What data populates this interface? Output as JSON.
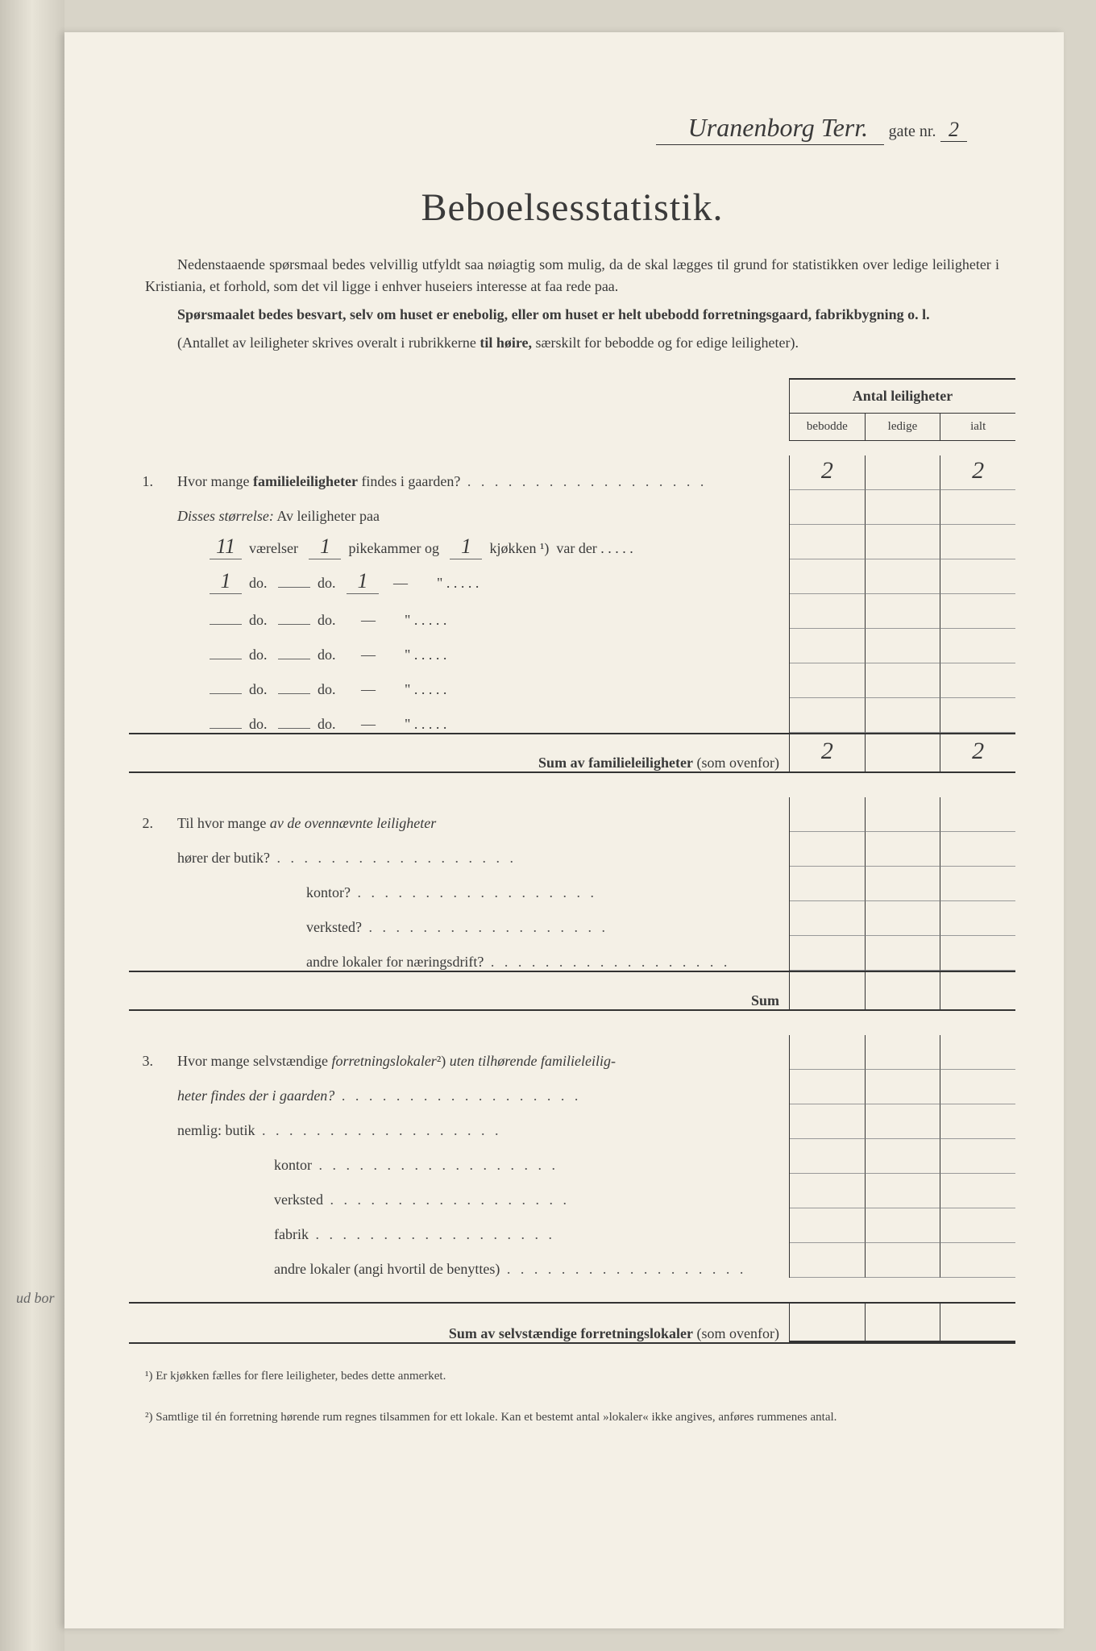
{
  "header": {
    "street_handwritten": "Uranenborg Terr.",
    "gate_label": "gate nr.",
    "gate_nr": "2"
  },
  "title": "Beboelsesstatistik.",
  "intro": {
    "p1": "Nedenstaaende spørsmaal bedes velvillig utfyldt saa nøiagtig som mulig, da de skal lægges til grund for statistikken over ledige leiligheter i Kristiania, et forhold, som det vil ligge i enhver huseiers interesse at faa rede paa.",
    "p2": "Spørsmaalet bedes besvart, selv om huset er enebolig, eller om huset er helt ubebodd forretningsgaard, fabrikbygning o. l.",
    "p3_pre": "(Antallet av leiligheter skrives overalt i rubrikkerne ",
    "p3_bold": "til høire,",
    "p3_post": " særskilt for bebodde og for edige leiligheter)."
  },
  "table_header": {
    "title": "Antal leiligheter",
    "col1": "bebodde",
    "col2": "ledige",
    "col3": "ialt"
  },
  "q1": {
    "num": "1.",
    "text": "Hvor mange ",
    "bold": "familieleiligheter",
    "text2": " findes i gaarden?",
    "bebodde": "2",
    "ledige": "",
    "ialt": "2",
    "disses": "Disses størrelse:",
    "av_leil": " Av leiligheter paa",
    "rows": [
      {
        "vaer": "11",
        "pike": "1",
        "kjok": "1",
        "dash": false
      },
      {
        "vaer": "1",
        "pike": "",
        "kjok": "1",
        "dash": true
      },
      {
        "vaer": "",
        "pike": "",
        "kjok": "",
        "dash": true
      },
      {
        "vaer": "",
        "pike": "",
        "kjok": "",
        "dash": true
      },
      {
        "vaer": "",
        "pike": "",
        "kjok": "",
        "dash": true
      },
      {
        "vaer": "",
        "pike": "",
        "kjok": "",
        "dash": true
      }
    ],
    "labels": {
      "vaer": "værelser",
      "do": "do.",
      "pike": "pikekammer og",
      "kjok": "kjøkken",
      "sup": "¹)",
      "var_der": "var der",
      "dash": "—",
      "quote": "\""
    },
    "sum_label": "Sum av familieleiligheter",
    "sum_note": "(som ovenfor)",
    "sum_bebodde": "2",
    "sum_ialt": "2"
  },
  "q2": {
    "num": "2.",
    "text": "Til hvor mange ",
    "italic": "av de ovennævnte leiligheter",
    "line2": "hører der butik?",
    "items": [
      "kontor?",
      "verksted?",
      "andre lokaler for næringsdrift?"
    ],
    "sum": "Sum"
  },
  "q3": {
    "num": "3.",
    "text_pre": "Hvor mange selvstændige ",
    "italic": "forretningslokaler",
    "sup": "²)",
    "text_mid": " uten tilhørende familieleilig-",
    "line2_italic": "heter findes der i gaarden?",
    "nemlig": "nemlig:",
    "items": [
      "butik",
      "kontor",
      "verksted",
      "fabrik",
      "andre lokaler (angi hvortil de benyttes)"
    ],
    "sum_label": "Sum av selvstændige forretningslokaler",
    "sum_note": "(som ovenfor)"
  },
  "footnotes": {
    "f1_sup": "¹)",
    "f1": "Er kjøkken fælles for flere leiligheter, bedes dette anmerket.",
    "f2_sup": "²)",
    "f2": "Samtlige til én forretning hørende rum regnes tilsammen for ett lokale. Kan et bestemt antal »lokaler« ikke angives, anføres rummenes antal."
  },
  "spine": {
    "text1": "",
    "text2": "ud bor"
  }
}
